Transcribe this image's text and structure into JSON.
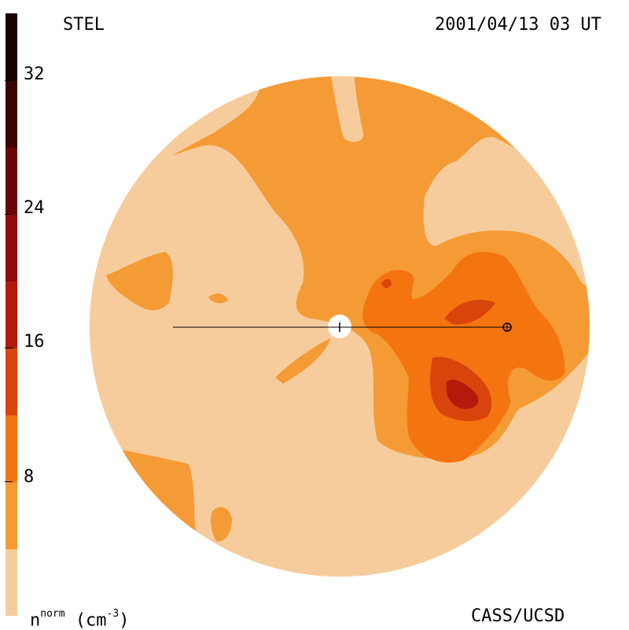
{
  "header": {
    "station": "STEL",
    "datetime": "2001/04/13 03 UT"
  },
  "footer": {
    "units_base": "n",
    "units_sup": "norm",
    "units_paren": "(cm",
    "units_exp": "-3",
    "units_close": ")",
    "credit": "CASS/UCSD"
  },
  "colorbar": {
    "ticks": [
      "32",
      "24",
      "16",
      "8"
    ],
    "levels": [
      {
        "min": 0,
        "max": 4,
        "color": "#f7cc9c"
      },
      {
        "min": 4,
        "max": 8,
        "color": "#f59b35"
      },
      {
        "min": 8,
        "max": 12,
        "color": "#f47510"
      },
      {
        "min": 12,
        "max": 16,
        "color": "#d9440c"
      },
      {
        "min": 16,
        "max": 20,
        "color": "#b41a0c"
      },
      {
        "min": 20,
        "max": 24,
        "color": "#930a08"
      },
      {
        "min": 24,
        "max": 28,
        "color": "#6b0505"
      },
      {
        "min": 28,
        "max": 32,
        "color": "#3d0303"
      },
      {
        "min": 32,
        "max": 36,
        "color": "#1a0202"
      }
    ]
  }
}
